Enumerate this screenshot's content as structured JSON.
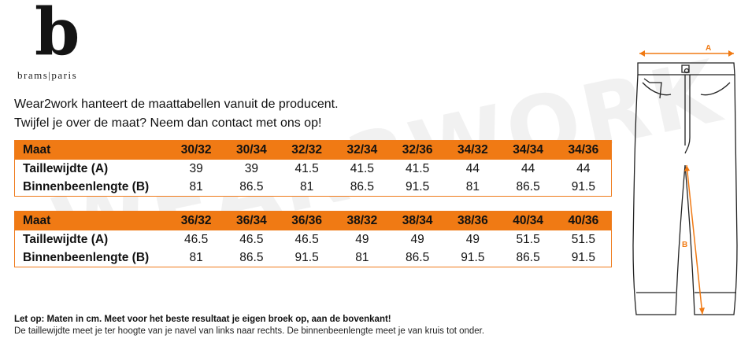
{
  "brand": {
    "letter": "b",
    "name": "brams|paris"
  },
  "watermark": "WEAR2WORK",
  "intro": [
    "Wear2work hanteert de maattabellen vanuit de producent.",
    "Twijfel je over de maat? Neem dan contact met ons op!"
  ],
  "tables": [
    {
      "rows": [
        {
          "label": "Maat",
          "cells": [
            "30/32",
            "30/34",
            "32/32",
            "32/34",
            "32/36",
            "34/32",
            "34/34",
            "34/36"
          ]
        },
        {
          "label": "Taillewijdte (A)",
          "cells": [
            "39",
            "39",
            "41.5",
            "41.5",
            "41.5",
            "44",
            "44",
            "44"
          ]
        },
        {
          "label": "Binnenbeenlengte (B)",
          "cells": [
            "81",
            "86.5",
            "81",
            "86.5",
            "91.5",
            "81",
            "86.5",
            "91.5"
          ]
        }
      ]
    },
    {
      "rows": [
        {
          "label": "Maat",
          "cells": [
            "36/32",
            "36/34",
            "36/36",
            "38/32",
            "38/34",
            "38/36",
            "40/34",
            "40/36"
          ]
        },
        {
          "label": "Taillewijdte (A)",
          "cells": [
            "46.5",
            "46.5",
            "46.5",
            "49",
            "49",
            "49",
            "51.5",
            "51.5"
          ]
        },
        {
          "label": "Binnenbeenlengte (B)",
          "cells": [
            "81",
            "86.5",
            "91.5",
            "81",
            "86.5",
            "91.5",
            "86.5",
            "91.5"
          ]
        }
      ]
    }
  ],
  "notes": {
    "bold": "Let op: Maten in cm. Meet voor het beste resultaat je eigen broek op, aan de bovenkant!",
    "normal": "De taillewijdte meet je ter hoogte van je navel van links naar rechts. De binnenbeenlengte meet je van kruis tot onder."
  },
  "diagram": {
    "label_a": "A",
    "label_b": "B"
  },
  "colors": {
    "accent": "#f07a14"
  }
}
